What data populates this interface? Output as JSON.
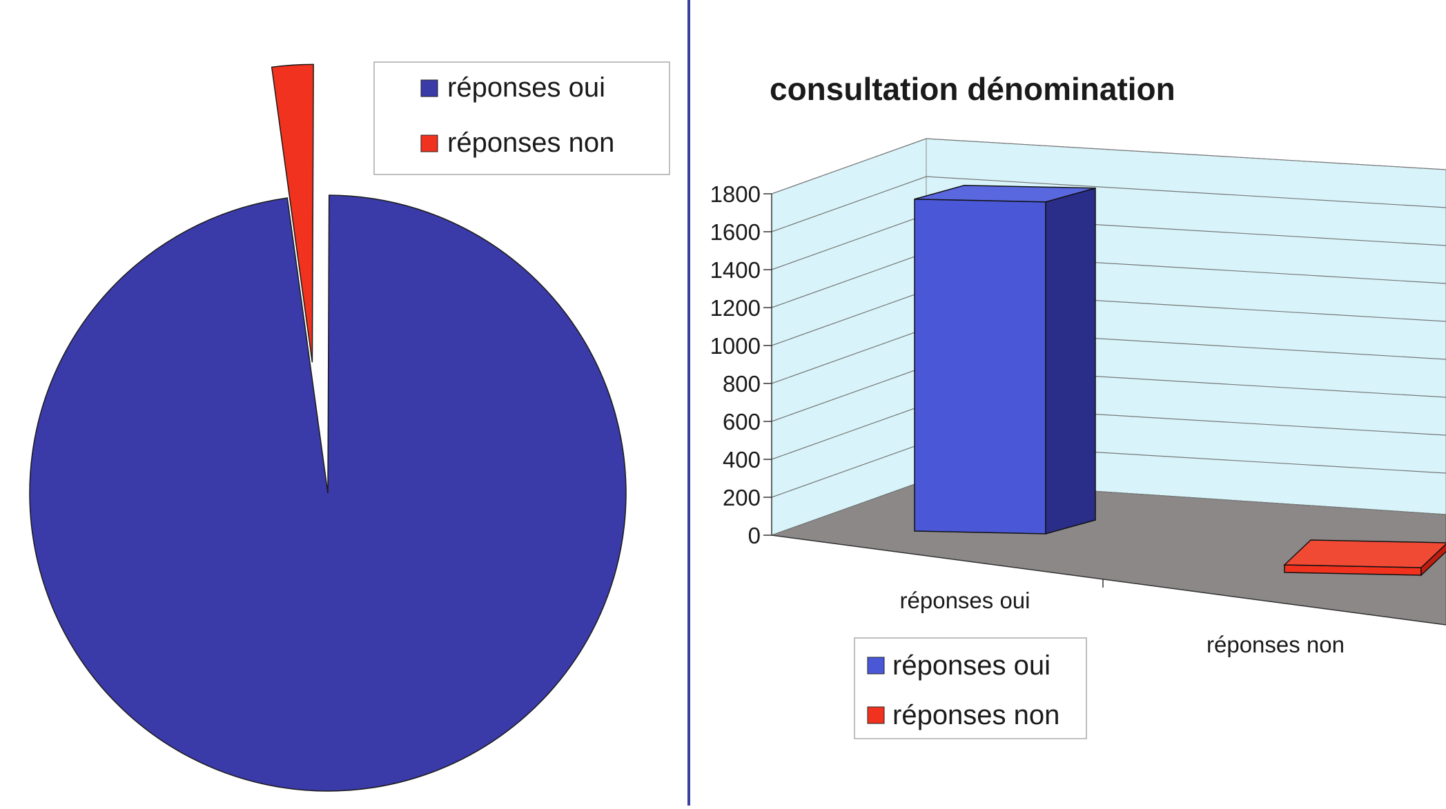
{
  "colors": {
    "oui": "#3a3aa8",
    "non": "#f0321e",
    "bar_oui_front": "#4a58d8",
    "bar_oui_side": "#2a2e88",
    "bar_oui_top": "#5a68e0",
    "bar_non_front": "#f0321e",
    "wall": "#d8f4fa",
    "floor": "#8c8888",
    "divider": "#3a3fa0"
  },
  "chart_data": [
    {
      "type": "pie",
      "title": "",
      "labels": [
        "réponses oui",
        "réponses non"
      ],
      "values": [
        1750,
        40
      ],
      "legend": {
        "placement": "top-right",
        "entries": [
          "réponses oui",
          "réponses non"
        ]
      }
    },
    {
      "type": "bar",
      "title": "consultation dénomination",
      "categories": [
        "réponses oui",
        "réponses non"
      ],
      "values": [
        1750,
        40
      ],
      "ylim": [
        0,
        1800
      ],
      "yticks": [
        0,
        200,
        400,
        600,
        800,
        1000,
        1200,
        1400,
        1600,
        1800
      ],
      "grid": true,
      "three_d": true,
      "legend": {
        "placement": "bottom-left",
        "entries": [
          "réponses oui",
          "réponses non"
        ]
      }
    }
  ]
}
